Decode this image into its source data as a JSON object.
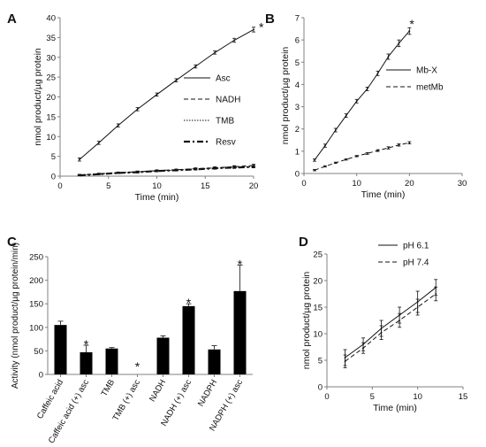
{
  "chart_data": [
    {
      "panel": "A",
      "type": "line",
      "xlabel": "Time (min)",
      "ylabel": "nmol product/µg protein",
      "xlim": [
        0,
        20
      ],
      "ylim": [
        0,
        40
      ],
      "xticks": [
        0,
        5,
        10,
        15,
        20
      ],
      "yticks": [
        0,
        5,
        10,
        15,
        20,
        25,
        30,
        35,
        40
      ],
      "x": [
        2,
        4,
        6,
        8,
        10,
        12,
        14,
        16,
        18,
        20
      ],
      "series": [
        {
          "name": "Asc",
          "style": "solid",
          "values": [
            4.2,
            8.4,
            12.8,
            16.9,
            20.6,
            24.2,
            27.7,
            31.2,
            34.3,
            37.0
          ],
          "err": [
            0.4,
            0.4,
            0.4,
            0.4,
            0.4,
            0.4,
            0.4,
            0.4,
            0.5,
            0.6
          ]
        },
        {
          "name": "NADH",
          "style": "dashed",
          "values": [
            0.3,
            0.6,
            0.9,
            1.1,
            1.4,
            1.6,
            1.9,
            2.1,
            2.4,
            2.7
          ],
          "err": [
            0.15,
            0.15,
            0.15,
            0.2,
            0.2,
            0.2,
            0.2,
            0.25,
            0.25,
            0.3
          ]
        },
        {
          "name": "TMB",
          "style": "dotted",
          "values": [
            0.3,
            0.5,
            0.8,
            1.0,
            1.3,
            1.5,
            1.8,
            2.0,
            2.2,
            2.4
          ],
          "err": [
            0.15,
            0.15,
            0.15,
            0.2,
            0.2,
            0.2,
            0.2,
            0.25,
            0.25,
            0.3
          ]
        },
        {
          "name": "Resv",
          "style": "dashdot",
          "values": [
            0.2,
            0.5,
            0.8,
            1.0,
            1.3,
            1.5,
            1.7,
            2.0,
            2.2,
            2.3
          ],
          "err": [
            0.1,
            0.1,
            0.1,
            0.15,
            0.15,
            0.15,
            0.15,
            0.2,
            0.2,
            0.2
          ]
        }
      ],
      "annotation": "*"
    },
    {
      "panel": "B",
      "type": "line",
      "xlabel": "Time (min)",
      "ylabel": "nmol product/µg protein",
      "xlim": [
        0,
        30
      ],
      "ylim": [
        0,
        7
      ],
      "xticks": [
        0,
        10,
        20,
        30
      ],
      "yticks": [
        0,
        1,
        2,
        3,
        4,
        5,
        6,
        7
      ],
      "x": [
        2,
        4,
        6,
        8,
        10,
        12,
        14,
        16,
        18,
        20
      ],
      "series": [
        {
          "name": "Mb-X",
          "style": "solid",
          "values": [
            0.6,
            1.25,
            1.95,
            2.6,
            3.25,
            3.8,
            4.5,
            5.25,
            5.85,
            6.4
          ],
          "err": [
            0.05,
            0.07,
            0.08,
            0.08,
            0.08,
            0.08,
            0.1,
            0.12,
            0.15,
            0.15
          ]
        },
        {
          "name": "metMb",
          "style": "dashed",
          "values": [
            0.15,
            0.32,
            0.48,
            0.63,
            0.78,
            0.9,
            1.03,
            1.15,
            1.28,
            1.38
          ],
          "err": [
            0.03,
            0.03,
            0.03,
            0.03,
            0.03,
            0.04,
            0.04,
            0.05,
            0.05,
            0.05
          ]
        }
      ],
      "annotation": "*"
    },
    {
      "panel": "C",
      "type": "bar",
      "ylabel": "Activity (nmol product/µg protein/min)",
      "ylim": [
        0,
        250
      ],
      "yticks": [
        0,
        50,
        100,
        150,
        200,
        250
      ],
      "categories": [
        "Caffeic acid",
        "Caffeic acid (+) asc",
        "TMB",
        "TMB (+) asc",
        "NADH",
        "NADH (+) asc",
        "NADPH",
        "NADPH (+) asc"
      ],
      "values": [
        105,
        47,
        55,
        0,
        78,
        145,
        53,
        177
      ],
      "err": [
        8,
        15,
        2,
        0,
        4,
        5,
        8,
        55
      ],
      "stars": [
        false,
        true,
        false,
        true,
        false,
        true,
        false,
        true
      ]
    },
    {
      "panel": "D",
      "type": "line",
      "xlabel": "Time (min)",
      "ylabel": "nmol product/µg protein",
      "xlim": [
        0,
        15
      ],
      "ylim": [
        0,
        25
      ],
      "xticks": [
        0,
        5,
        10,
        15
      ],
      "yticks": [
        0,
        5,
        10,
        15,
        20,
        25
      ],
      "x": [
        2,
        4,
        6,
        8,
        10,
        12
      ],
      "series": [
        {
          "name": "pH 6.1",
          "style": "solid",
          "values": [
            5.5,
            8.0,
            11.0,
            13.5,
            16.0,
            18.7
          ],
          "err": [
            1.5,
            1.2,
            1.5,
            1.5,
            2.0,
            1.5
          ]
        },
        {
          "name": "pH 7.4",
          "style": "dashed",
          "values": [
            4.8,
            7.3,
            10.2,
            12.5,
            15.0,
            17.5
          ],
          "err": [
            1.2,
            1.0,
            1.3,
            1.3,
            1.5,
            1.3
          ]
        }
      ]
    }
  ],
  "panel_labels": [
    "A",
    "B",
    "C",
    "D"
  ],
  "colors": {
    "ink": "#111111",
    "axis": "#808080",
    "bar": "#000000"
  }
}
